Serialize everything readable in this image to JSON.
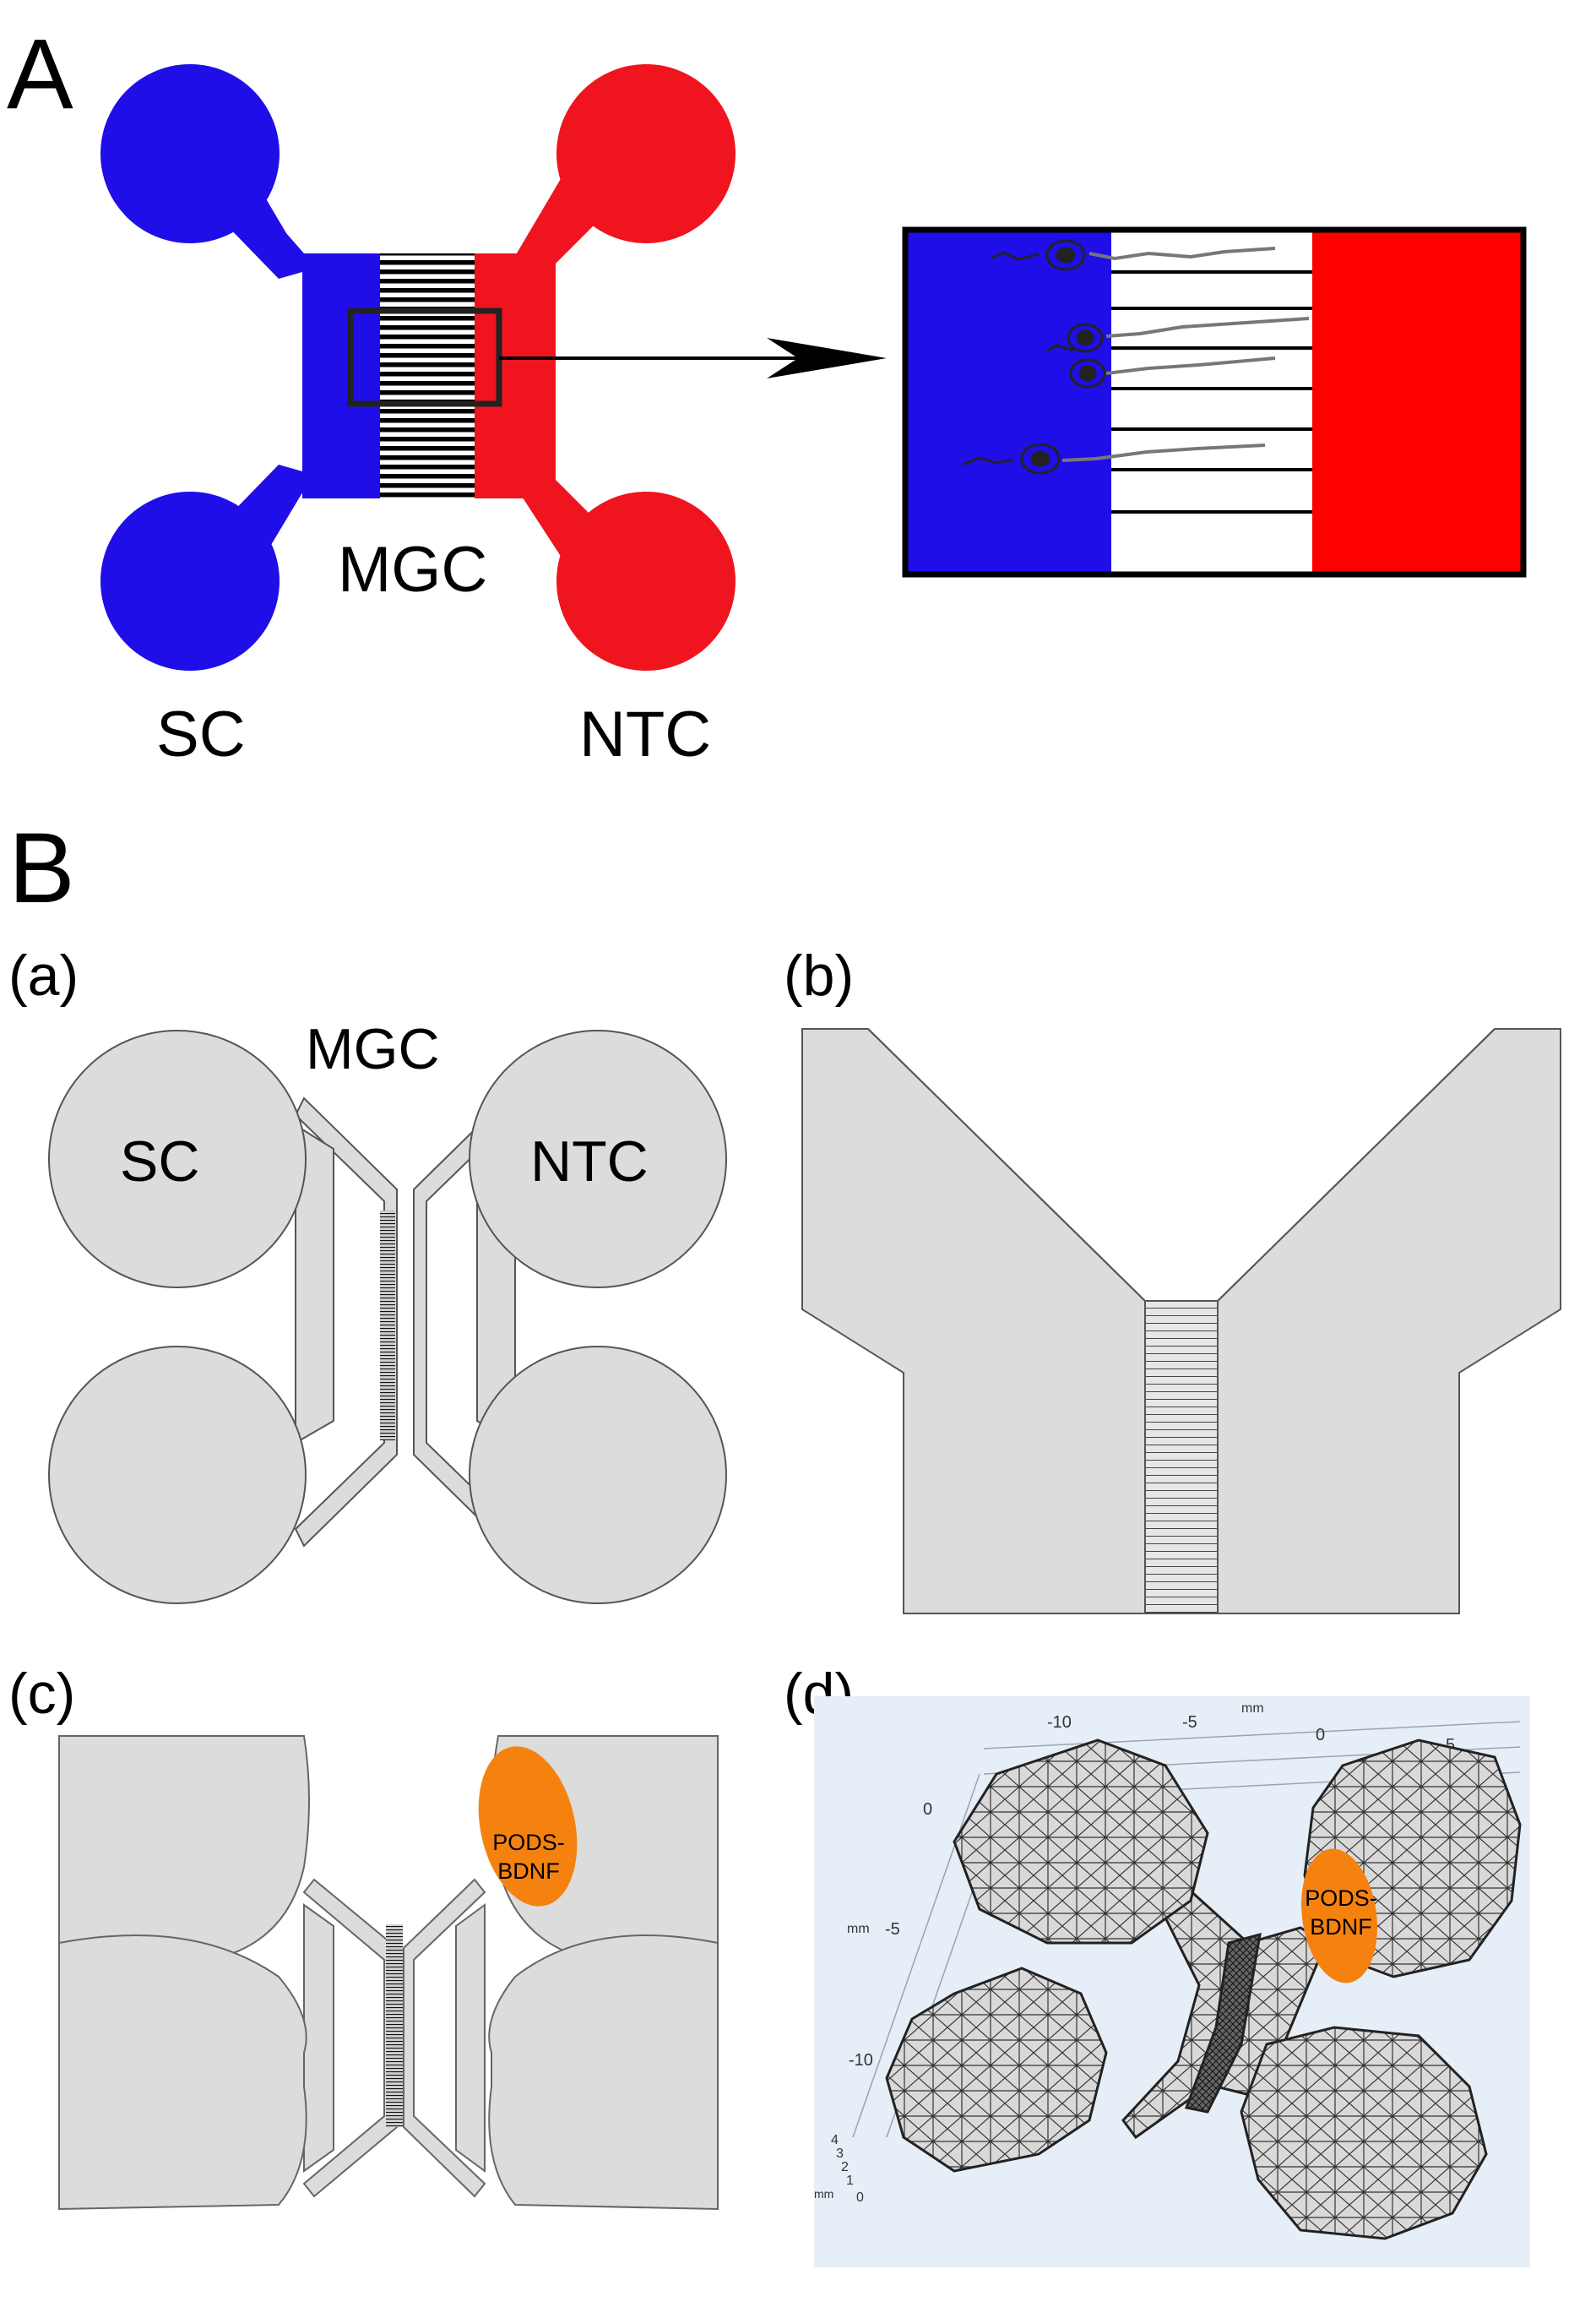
{
  "panel_A": {
    "letter": "A",
    "labels": {
      "sc": "SC",
      "mgc": "MGC",
      "ntc": "NTC"
    },
    "colors": {
      "sc": "#1f0ee8",
      "ntc": "#f0141e",
      "microgrooves": "#000000"
    }
  },
  "panel_B": {
    "letter": "B",
    "sub_a": {
      "tag": "(a)",
      "mgc": "MGC",
      "sc": "SC",
      "ntc": "NTC"
    },
    "sub_b": {
      "tag": "(b)"
    },
    "sub_c": {
      "tag": "(c)",
      "pods_line1": "PODS-",
      "pods_line2": "BDNF"
    },
    "sub_d": {
      "tag": "(d)",
      "pods_line1": "PODS-",
      "pods_line2": "BDNF",
      "top_axis_ticks": [
        "-10",
        "-5",
        "0",
        "5"
      ],
      "top_axis_unit": "mm",
      "left_axis_ticks": [
        "0",
        "-5",
        "-10"
      ],
      "left_axis_unit": "mm",
      "z_axis_ticks": [
        "4",
        "3",
        "2",
        "1",
        "0"
      ],
      "z_axis_unit": "mm"
    },
    "colors": {
      "fill": "#dcdcdc",
      "outline": "#555555",
      "pods": "#f5820f",
      "mesh_bg": "#e6eef8"
    }
  }
}
